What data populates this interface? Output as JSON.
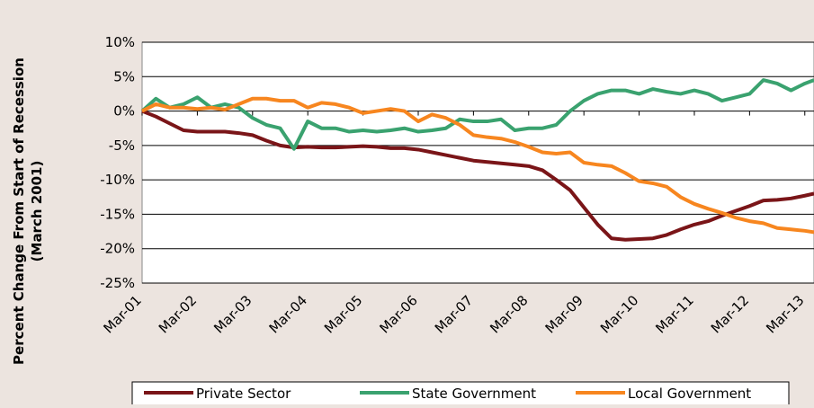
{
  "chart_data": {
    "type": "line",
    "y_label": [
      "Percent Change From Start of Recession",
      "(March 2001)"
    ],
    "xlim": [
      0,
      146
    ],
    "xticks": [
      {
        "value": 0,
        "label": "Mar-01"
      },
      {
        "value": 12,
        "label": "Mar-02"
      },
      {
        "value": 24,
        "label": "Mar-03"
      },
      {
        "value": 36,
        "label": "Mar-04"
      },
      {
        "value": 48,
        "label": "Mar-05"
      },
      {
        "value": 60,
        "label": "Mar-06"
      },
      {
        "value": 72,
        "label": "Mar-07"
      },
      {
        "value": 84,
        "label": "Mar-08"
      },
      {
        "value": 96,
        "label": "Mar-09"
      },
      {
        "value": 108,
        "label": "Mar-10"
      },
      {
        "value": 120,
        "label": "Mar-11"
      },
      {
        "value": 132,
        "label": "Mar-12"
      },
      {
        "value": 144,
        "label": "Mar-13"
      }
    ],
    "ylim": [
      -25,
      10
    ],
    "yticks": [
      {
        "value": 10,
        "label": "10%"
      },
      {
        "value": 5,
        "label": "5%"
      },
      {
        "value": 0,
        "label": "0%"
      },
      {
        "value": -5,
        "label": "-5%"
      },
      {
        "value": -10,
        "label": "-10%"
      },
      {
        "value": -15,
        "label": "-15%"
      },
      {
        "value": -20,
        "label": "-20%"
      },
      {
        "value": -25,
        "label": "-25%"
      }
    ],
    "grid": true,
    "legend": "bottom",
    "x": [
      0,
      3,
      6,
      9,
      12,
      15,
      18,
      21,
      24,
      27,
      30,
      33,
      36,
      39,
      42,
      45,
      48,
      51,
      54,
      57,
      60,
      63,
      66,
      69,
      72,
      75,
      78,
      81,
      84,
      87,
      90,
      93,
      96,
      99,
      102,
      105,
      108,
      111,
      114,
      117,
      120,
      123,
      126,
      129,
      132,
      135,
      138,
      141,
      144,
      146
    ],
    "series": [
      {
        "name": "Private Sector",
        "color": "#7a1518",
        "values": [
          0,
          -0.8,
          -1.8,
          -2.8,
          -3.0,
          -3.0,
          -3.0,
          -3.2,
          -3.5,
          -4.3,
          -5.0,
          -5.3,
          -5.2,
          -5.3,
          -5.3,
          -5.2,
          -5.1,
          -5.2,
          -5.4,
          -5.4,
          -5.6,
          -6.0,
          -6.4,
          -6.8,
          -7.2,
          -7.4,
          -7.6,
          -7.8,
          -8.0,
          -8.6,
          -10.0,
          -11.5,
          -14.0,
          -16.5,
          -18.5,
          -18.7,
          -18.6,
          -18.5,
          -18.0,
          -17.2,
          -16.5,
          -16.0,
          -15.2,
          -14.5,
          -13.8,
          -13.0,
          -12.9,
          -12.7,
          -12.3,
          -12.0
        ]
      },
      {
        "name": "State Government",
        "color": "#3aa26f",
        "values": [
          0,
          1.8,
          0.5,
          1.0,
          2.0,
          0.5,
          1.0,
          0.5,
          -1.0,
          -2.0,
          -2.5,
          -5.5,
          -1.5,
          -2.5,
          -2.5,
          -3.0,
          -2.8,
          -3.0,
          -2.8,
          -2.5,
          -3.0,
          -2.8,
          -2.5,
          -1.2,
          -1.5,
          -1.5,
          -1.2,
          -2.8,
          -2.5,
          -2.5,
          -2.0,
          0.0,
          1.5,
          2.5,
          3.0,
          3.0,
          2.5,
          3.2,
          2.8,
          2.5,
          3.0,
          2.5,
          1.5,
          2.0,
          2.5,
          4.5,
          4.0,
          3.0,
          4.0,
          4.5
        ]
      },
      {
        "name": "Local Government",
        "color": "#f7861f",
        "values": [
          0,
          1.0,
          0.5,
          0.5,
          0.3,
          0.5,
          0.2,
          1.0,
          1.8,
          1.8,
          1.5,
          1.5,
          0.5,
          1.2,
          1.0,
          0.5,
          -0.3,
          0.0,
          0.3,
          0.0,
          -1.5,
          -0.5,
          -1.0,
          -2.0,
          -3.5,
          -3.8,
          -4.0,
          -4.5,
          -5.2,
          -6.0,
          -6.2,
          -6.0,
          -7.5,
          -7.8,
          -8.0,
          -9.0,
          -10.2,
          -10.5,
          -11.0,
          -12.5,
          -13.5,
          -14.2,
          -14.8,
          -15.5,
          -16.0,
          -16.3,
          -17.0,
          -17.2,
          -17.4,
          -17.6
        ]
      }
    ]
  }
}
